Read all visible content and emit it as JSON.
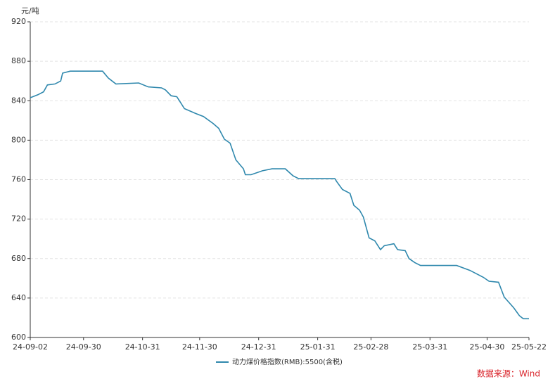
{
  "chart_data": {
    "type": "line",
    "y_unit": "元/吨",
    "source": "数据来源：Wind",
    "x": [
      "24-09-02",
      "24-09-06",
      "24-09-09",
      "24-09-11",
      "24-09-15",
      "24-09-18",
      "24-09-19",
      "24-09-23",
      "24-10-10",
      "24-10-13",
      "24-10-17",
      "24-10-29",
      "24-11-03",
      "24-11-10",
      "24-11-12",
      "24-11-15",
      "24-11-18",
      "24-11-22",
      "24-11-28",
      "24-12-02",
      "24-12-07",
      "24-12-10",
      "24-12-13",
      "24-12-16",
      "24-12-19",
      "24-12-23",
      "24-12-24",
      "24-12-27",
      "25-01-02",
      "25-01-07",
      "25-01-14",
      "25-01-18",
      "25-01-21",
      "25-02-09",
      "25-02-10",
      "25-02-13",
      "25-02-17",
      "25-02-19",
      "25-02-22",
      "25-02-24",
      "25-02-26",
      "25-02-27",
      "25-03-02",
      "25-03-05",
      "25-03-07",
      "25-03-12",
      "25-03-14",
      "25-03-18",
      "25-03-20",
      "25-03-23",
      "25-03-26",
      "25-04-14",
      "25-04-21",
      "25-04-28",
      "25-05-01",
      "25-05-06",
      "25-05-09",
      "25-05-14",
      "25-05-17",
      "25-05-19",
      "25-05-22"
    ],
    "series": [
      {
        "name": "动力煤价格指数(RMB):5500(含税)",
        "color": "#2f88ad",
        "values": [
          843,
          846,
          849,
          856,
          857,
          860,
          868,
          870,
          870,
          863,
          857,
          858,
          854,
          853,
          851,
          845,
          844,
          832,
          827,
          824,
          817,
          812,
          801,
          797,
          780,
          771,
          765,
          765,
          769,
          771,
          771,
          764,
          761,
          761,
          758,
          750,
          746,
          734,
          729,
          722,
          708,
          701,
          698,
          689,
          693,
          695,
          689,
          688,
          680,
          676,
          673,
          673,
          668,
          661,
          657,
          656,
          641,
          630,
          622,
          619,
          619
        ]
      }
    ],
    "xlim": [
      "24-09-02",
      "25-05-22"
    ],
    "xticks": [
      "24-09-02",
      "24-09-30",
      "24-10-31",
      "24-11-30",
      "24-12-31",
      "25-01-31",
      "25-02-28",
      "25-03-31",
      "25-04-30",
      "25-05-22"
    ],
    "ylim": [
      600,
      920
    ],
    "yticks": [
      600,
      640,
      680,
      720,
      760,
      800,
      840,
      880,
      920
    ],
    "grid": true
  }
}
